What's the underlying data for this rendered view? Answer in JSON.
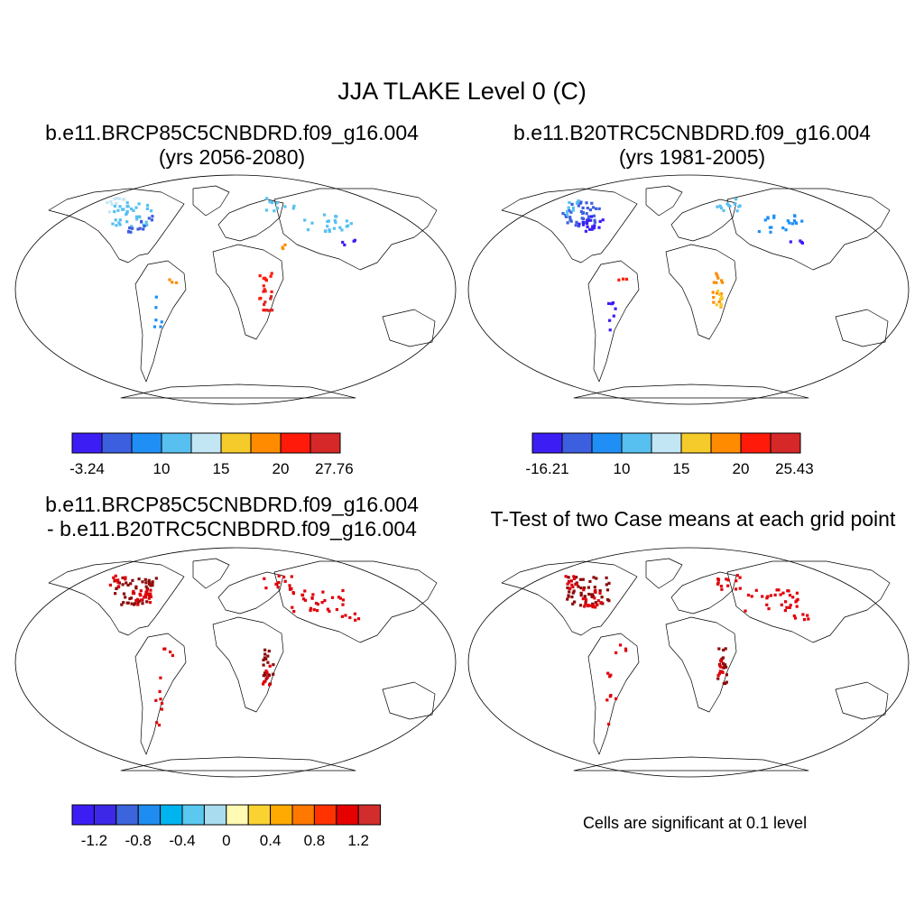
{
  "title": "JJA TLAKE Level 0 (C)",
  "panels": [
    {
      "line1": "b.e11.BRCP85C5CNBDRD.f09_g16.004",
      "line2": "(yrs 2056-2080)"
    },
    {
      "line1": "b.e11.B20TRC5CNBDRD.f09_g16.004",
      "line2": "(yrs 1981-2005)"
    },
    {
      "line1": "b.e11.BRCP85C5CNBDRD.f09_g16.004",
      "line2": "- b.e11.B20TRC5CNBDRD.f09_g16.004"
    },
    {
      "line1": "T-Test of two Case means at each grid point"
    }
  ],
  "colorbars": [
    {
      "colors": [
        "#3c1ef5",
        "#3c5fe0",
        "#1f8ff5",
        "#57c0f0",
        "#c3e6f5",
        "#f5cb2c",
        "#ff8c00",
        "#ff1a0a",
        "#d62828"
      ],
      "labels": [
        "-3.24",
        "10",
        "15",
        "20",
        "27.76"
      ]
    },
    {
      "colors": [
        "#3c1ef5",
        "#3c5fe0",
        "#1f8ff5",
        "#57c0f0",
        "#c3e6f5",
        "#f5cb2c",
        "#ff8c00",
        "#ff1a0a",
        "#d62828"
      ],
      "labels": [
        "-16.21",
        "10",
        "15",
        "20",
        "25.43"
      ]
    },
    {
      "colors": [
        "#3c1ef5",
        "#3c28e6",
        "#3c64dc",
        "#1e8cf0",
        "#00b4f0",
        "#5ac8f0",
        "#aadcf0",
        "#fffab4",
        "#fad232",
        "#ffaa00",
        "#ff7800",
        "#ff3200",
        "#e60000",
        "#d22d2d"
      ],
      "labels": [
        "-1.2",
        "-0.8",
        "-0.4",
        "0",
        "0.4",
        "0.8",
        "1.2"
      ]
    }
  ],
  "significance_note": "Cells are significant at 0.1 level"
}
